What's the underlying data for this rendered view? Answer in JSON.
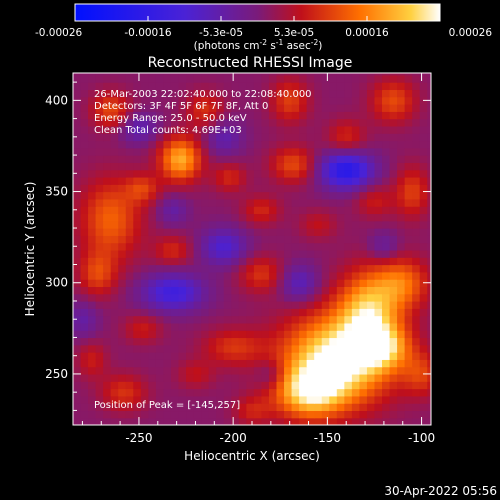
{
  "chart_data": {
    "type": "heatmap",
    "title": "Reconstructed RHESSI Image",
    "xlabel": "Heliocentric X (arcsec)",
    "ylabel": "Heliocentric Y (arcsec)",
    "xlim": [
      -285,
      -95
    ],
    "ylim": [
      222,
      415
    ],
    "xticks": [
      -250,
      -200,
      -150,
      -100
    ],
    "yticks": [
      250,
      300,
      350,
      400
    ],
    "colorbar": {
      "range": [
        -0.00026,
        0.00026
      ],
      "ticks": [
        "-0.00026",
        "-0.00016",
        "-5.3e-05",
        "5.3e-05",
        "0.00016",
        "0.00026"
      ],
      "unit_parts": [
        "(photons cm",
        "-2",
        " s",
        "-1",
        " asec",
        "-2",
        ")"
      ]
    },
    "info_lines": [
      "26-Mar-2003 22:02:40.000 to 22:08:40.000",
      "Detectors: 3F 4F 5F 6F 7F 8F, Att 0",
      "Energy Range: 25.0 - 50.0 keV",
      "Clean     Total counts: 4.69E+03"
    ],
    "peak_label": "Position of Peak = [-145,257]",
    "peak": [
      -145,
      257
    ],
    "blobs": [
      [
        -145,
        258,
        28,
        24,
        0.00026
      ],
      [
        -128,
        285,
        16,
        22,
        0.00018
      ],
      [
        -160,
        240,
        18,
        14,
        0.00017
      ],
      [
        -110,
        300,
        14,
        14,
        0.00012
      ],
      [
        -120,
        265,
        14,
        12,
        0.00013
      ],
      [
        -228,
        368,
        11,
        12,
        0.00018
      ],
      [
        -265,
        335,
        16,
        22,
        0.00012
      ],
      [
        -272,
        305,
        10,
        12,
        9e-05
      ],
      [
        -265,
        395,
        10,
        10,
        0.0001
      ],
      [
        -168,
        365,
        12,
        10,
        0.0001
      ],
      [
        -215,
        395,
        10,
        10,
        8e-05
      ],
      [
        -170,
        400,
        10,
        12,
        9e-05
      ],
      [
        -115,
        400,
        12,
        12,
        0.0001
      ],
      [
        -105,
        350,
        9,
        14,
        9e-05
      ],
      [
        -185,
        305,
        12,
        10,
        8e-05
      ],
      [
        -232,
        318,
        10,
        8,
        7e-05
      ],
      [
        -200,
        265,
        16,
        10,
        8e-05
      ],
      [
        -248,
        275,
        10,
        8,
        6e-05
      ],
      [
        -258,
        240,
        12,
        10,
        8e-05
      ],
      [
        -190,
        230,
        10,
        8,
        6e-05
      ],
      [
        -185,
        340,
        10,
        8,
        7e-05
      ],
      [
        -125,
        345,
        10,
        9,
        6e-05
      ],
      [
        -140,
        380,
        10,
        10,
        7e-05
      ],
      [
        -248,
        352,
        9,
        8,
        8e-05
      ],
      [
        -202,
        358,
        9,
        8,
        7e-05
      ],
      [
        -155,
        332,
        10,
        8,
        5e-05
      ],
      [
        -275,
        258,
        8,
        10,
        6e-05
      ],
      [
        -220,
        250,
        10,
        8,
        5e-05
      ],
      [
        -100,
        250,
        10,
        12,
        8e-05
      ],
      [
        -140,
        362,
        14,
        10,
        -0.00019
      ],
      [
        -232,
        295,
        16,
        10,
        -0.00014
      ],
      [
        -205,
        320,
        12,
        10,
        -0.00011
      ],
      [
        -250,
        385,
        10,
        8,
        -8e-05
      ],
      [
        -165,
        300,
        10,
        10,
        -9e-05
      ],
      [
        -205,
        380,
        10,
        10,
        -7e-05
      ],
      [
        -280,
        280,
        8,
        10,
        -6e-05
      ],
      [
        -232,
        340,
        8,
        8,
        -6e-05
      ],
      [
        -120,
        320,
        8,
        8,
        -6e-05
      ],
      [
        -180,
        250,
        8,
        8,
        -6e-05
      ]
    ]
  },
  "timestamp": "30-Apr-2022 05:56"
}
